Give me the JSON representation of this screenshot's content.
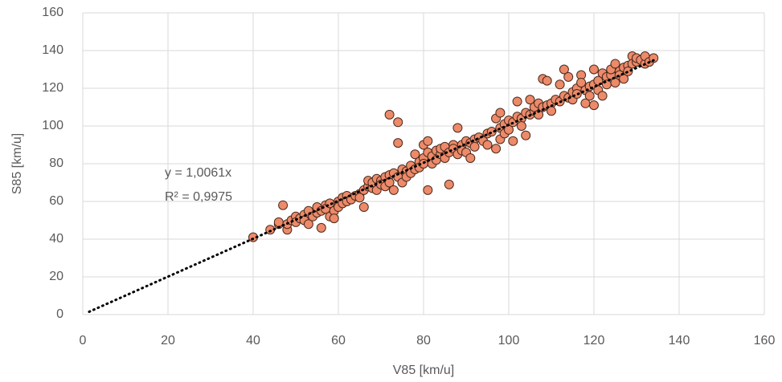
{
  "chart_data": {
    "type": "scatter",
    "x_label": "V85 [km/u]",
    "y_label": "S85 [km/u]",
    "xlim": [
      0,
      160
    ],
    "ylim": [
      0,
      160
    ],
    "xticks": [
      0,
      20,
      40,
      60,
      80,
      100,
      120,
      140,
      160
    ],
    "yticks": [
      0,
      20,
      40,
      60,
      80,
      100,
      120,
      140,
      160
    ],
    "grid": true,
    "color": "#ec8a6a",
    "x": [
      40,
      44,
      46,
      46,
      47,
      48,
      48,
      49,
      50,
      50,
      51,
      52,
      52,
      53,
      53,
      54,
      55,
      55,
      56,
      56,
      57,
      57,
      58,
      58,
      59,
      59,
      60,
      60,
      61,
      61,
      62,
      62,
      63,
      64,
      65,
      65,
      66,
      66,
      67,
      67,
      68,
      68,
      69,
      69,
      70,
      70,
      71,
      71,
      72,
      72,
      72,
      73,
      73,
      74,
      74,
      74,
      75,
      75,
      76,
      76,
      77,
      77,
      78,
      78,
      79,
      79,
      80,
      80,
      80,
      81,
      81,
      81,
      82,
      82,
      83,
      83,
      84,
      84,
      85,
      85,
      86,
      86,
      87,
      87,
      88,
      88,
      89,
      89,
      90,
      90,
      91,
      91,
      92,
      92,
      93,
      94,
      95,
      95,
      96,
      97,
      97,
      98,
      98,
      98,
      99,
      99,
      100,
      100,
      101,
      101,
      102,
      102,
      103,
      103,
      104,
      104,
      105,
      105,
      106,
      106,
      107,
      107,
      108,
      108,
      109,
      109,
      110,
      110,
      111,
      112,
      112,
      113,
      113,
      114,
      114,
      115,
      115,
      116,
      116,
      117,
      117,
      118,
      118,
      119,
      119,
      120,
      120,
      120,
      121,
      121,
      122,
      122,
      123,
      123,
      124,
      124,
      125,
      125,
      126,
      126,
      127,
      127,
      128,
      128,
      129,
      129,
      130,
      130,
      131,
      132,
      132,
      133,
      134
    ],
    "y": [
      41,
      45,
      48,
      49,
      58,
      45,
      48,
      50,
      52,
      49,
      51,
      53,
      50,
      55,
      48,
      52,
      54,
      57,
      46,
      55,
      58,
      56,
      59,
      52,
      55,
      51,
      60,
      57,
      62,
      59,
      63,
      60,
      61,
      63,
      64,
      62,
      66,
      57,
      68,
      71,
      67,
      70,
      72,
      66,
      71,
      69,
      73,
      68,
      106,
      74,
      70,
      75,
      66,
      91,
      102,
      73,
      77,
      70,
      76,
      73,
      79,
      75,
      85,
      77,
      81,
      78,
      90,
      83,
      80,
      92,
      66,
      86,
      84,
      80,
      87,
      82,
      85,
      88,
      89,
      83,
      69,
      86,
      90,
      88,
      99,
      85,
      90,
      87,
      86,
      92,
      83,
      91,
      93,
      89,
      94,
      92,
      96,
      90,
      97,
      88,
      104,
      107,
      99,
      93,
      101,
      96,
      103,
      98,
      92,
      102,
      105,
      113,
      104,
      100,
      107,
      95,
      114,
      106,
      108,
      110,
      112,
      106,
      125,
      110,
      124,
      111,
      112,
      108,
      114,
      113,
      122,
      130,
      116,
      126,
      115,
      114,
      118,
      120,
      117,
      127,
      123,
      119,
      112,
      121,
      116,
      122,
      130,
      111,
      124,
      119,
      128,
      116,
      126,
      122,
      127,
      130,
      133,
      123,
      129,
      127,
      131,
      125,
      132,
      129,
      137,
      133,
      134,
      136,
      135,
      133,
      137,
      134,
      136
    ],
    "trendline": {
      "slope": 1.0061,
      "x": [
        1.5,
        134
      ],
      "color": "#000000"
    },
    "annotations": [
      "y = 1,0061x",
      "R² = 0,9975"
    ]
  }
}
